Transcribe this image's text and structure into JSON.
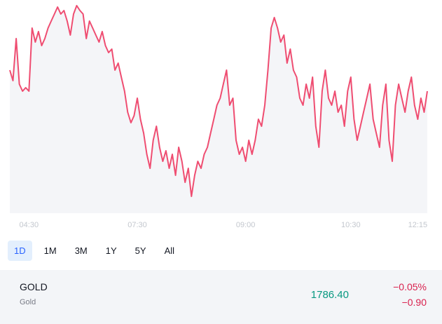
{
  "chart_data": {
    "type": "line",
    "color": "#ef4d71",
    "area_color": "#f4f5f8",
    "categories": [
      null,
      null,
      null,
      null,
      null,
      null,
      "04:30",
      null,
      null,
      null,
      null,
      null,
      null,
      null,
      null,
      null,
      null,
      null,
      null,
      null,
      null,
      null,
      null,
      null,
      null,
      null,
      null,
      null,
      null,
      null,
      null,
      null,
      null,
      null,
      null,
      null,
      null,
      null,
      null,
      null,
      "07:30",
      null,
      null,
      null,
      null,
      null,
      null,
      null,
      null,
      null,
      null,
      null,
      null,
      null,
      null,
      null,
      null,
      null,
      null,
      null,
      null,
      null,
      null,
      null,
      null,
      null,
      null,
      null,
      null,
      null,
      null,
      null,
      null,
      null,
      "09:00",
      null,
      null,
      null,
      null,
      null,
      null,
      null,
      null,
      null,
      null,
      null,
      null,
      null,
      null,
      null,
      null,
      null,
      null,
      null,
      null,
      null,
      null,
      null,
      null,
      null,
      null,
      null,
      null,
      null,
      null,
      null,
      null,
      "10:30",
      null,
      null,
      null,
      null,
      null,
      null,
      null,
      null,
      null,
      null,
      null,
      null,
      null,
      null,
      null,
      null,
      null,
      null,
      null,
      null,
      "12:15",
      null,
      null,
      null
    ],
    "values": [
      1790,
      1789.25,
      1792.25,
      1789,
      1788.5,
      1788.75,
      1788.5,
      1793,
      1792,
      1792.75,
      1791.75,
      1792.25,
      1793,
      1793.5,
      1794,
      1794.5,
      1794,
      1794.25,
      1793.5,
      1792.5,
      1794,
      1794.6,
      1794.25,
      1794,
      1792.25,
      1793.5,
      1793,
      1792.5,
      1792,
      1792.75,
      1791.75,
      1791.25,
      1791.5,
      1790,
      1790.5,
      1789.5,
      1788.5,
      1787,
      1786.25,
      1786.75,
      1788,
      1786.5,
      1785.5,
      1784,
      1783,
      1785,
      1786,
      1784.5,
      1783.5,
      1784.25,
      1783,
      1784,
      1782.5,
      1784.5,
      1783.5,
      1782,
      1783,
      1781,
      1782.5,
      1783.5,
      1783,
      1784,
      1784.5,
      1785.5,
      1786.5,
      1787.5,
      1788,
      1789,
      1790,
      1787.5,
      1788,
      1785,
      1784,
      1784.5,
      1783.5,
      1785,
      1784,
      1785,
      1786.5,
      1786,
      1787.5,
      1790,
      1793,
      1793.75,
      1793,
      1792,
      1792.5,
      1790.5,
      1791.5,
      1790,
      1789.5,
      1788,
      1787.5,
      1789,
      1788,
      1789.5,
      1786,
      1784.5,
      1788.5,
      1790,
      1788,
      1787.5,
      1788.5,
      1787,
      1787.5,
      1786,
      1788.5,
      1789.5,
      1786.5,
      1785,
      1786,
      1787,
      1788,
      1789,
      1786.5,
      1785.5,
      1784.5,
      1787.5,
      1789,
      1785,
      1783.5,
      1787.5,
      1789,
      1788,
      1787,
      1788.5,
      1789.5,
      1787.5,
      1786.5,
      1788,
      1787,
      1788.5
    ],
    "ylim": [
      1780,
      1795
    ]
  },
  "range_tabs": [
    "1D",
    "1M",
    "3M",
    "1Y",
    "5Y",
    "All"
  ],
  "selected_tab": 0,
  "quote": {
    "symbol": "GOLD",
    "name": "Gold",
    "price": "1786.40",
    "change_percent": "−0.05%",
    "change": "−0.90"
  }
}
